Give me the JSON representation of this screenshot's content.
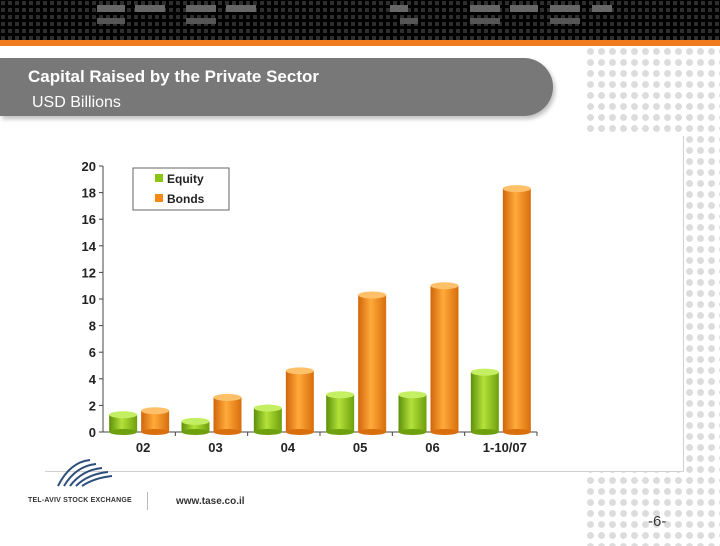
{
  "slide": {
    "title": "Capital Raised by the Private Sector",
    "subtitle": "USD Billions",
    "logo_text": "TEL-AVIV STOCK EXCHANGE",
    "website": "www.tase.co.il",
    "page_number": "-6-"
  },
  "colors": {
    "accent": "#f07c1e",
    "banner": "#787878",
    "equity": "#8cc412",
    "bonds": "#f58a12"
  },
  "chart_data": {
    "type": "bar",
    "title": "Capital Raised by the Private Sector",
    "ylabel": "USD Billions",
    "xlabel": "",
    "categories": [
      "02",
      "03",
      "04",
      "05",
      "06",
      "1-10/07"
    ],
    "series": [
      {
        "name": "Equity",
        "values": [
          1.3,
          0.8,
          1.8,
          2.8,
          2.8,
          4.5
        ]
      },
      {
        "name": "Bonds",
        "values": [
          1.6,
          2.6,
          4.6,
          10.3,
          11.0,
          18.3
        ]
      }
    ],
    "ylim": [
      0,
      20
    ],
    "yticks": [
      0,
      2,
      4,
      6,
      8,
      10,
      12,
      14,
      16,
      18,
      20
    ],
    "legend_position": "top-left",
    "grid": false
  }
}
